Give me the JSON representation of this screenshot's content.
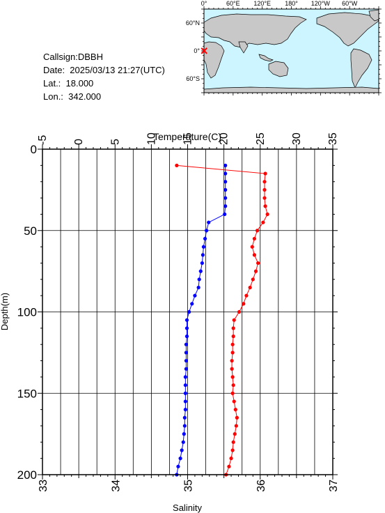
{
  "info": {
    "callsign": "Callsign:DBBH",
    "date": "Date:  2025/03/13 21:27(UTC)",
    "lat": "Lat.:  18.000",
    "lon": "Lon.:  342.000"
  },
  "map": {
    "lon_labels": [
      "0°",
      "60°E",
      "120°E",
      "180°",
      "120°W",
      "60°W"
    ],
    "lat_labels": [
      "60°N",
      "0°",
      "60°S"
    ],
    "ocean_color": "#ccf5ff",
    "land_color": "#c8c8c8",
    "marker_color": "#ff0000",
    "marker_icon": "x-mark-icon"
  },
  "chart_data": {
    "type": "line",
    "top_axis": {
      "label": "Temperature(C)",
      "range": [
        -5,
        35
      ],
      "ticks": [
        -5,
        0,
        5,
        10,
        15,
        20,
        25,
        30,
        35
      ]
    },
    "bottom_axis": {
      "label": "Salinity",
      "range": [
        33,
        37
      ],
      "ticks": [
        33,
        34,
        35,
        36,
        37
      ]
    },
    "left_axis": {
      "label": "Depth(m)",
      "range": [
        0,
        200
      ],
      "ticks": [
        0,
        50,
        100,
        150,
        200
      ],
      "inverted": true
    },
    "grid": true,
    "series": [
      {
        "axis": "temperature",
        "color": "#0000ff",
        "points": [
          [
            20.2,
            10
          ],
          [
            20.2,
            15
          ],
          [
            20.2,
            20
          ],
          [
            20.2,
            25
          ],
          [
            20.2,
            30
          ],
          [
            20.2,
            35
          ],
          [
            20.1,
            40
          ],
          [
            17.9,
            45
          ],
          [
            17.6,
            50
          ],
          [
            17.4,
            55
          ],
          [
            17.2,
            60
          ],
          [
            17.1,
            65
          ],
          [
            17.0,
            70
          ],
          [
            16.8,
            75
          ],
          [
            16.6,
            80
          ],
          [
            16.5,
            85
          ],
          [
            16.0,
            90
          ],
          [
            15.6,
            95
          ],
          [
            15.2,
            100
          ],
          [
            14.9,
            105
          ],
          [
            14.9,
            110
          ],
          [
            14.9,
            115
          ],
          [
            14.8,
            120
          ],
          [
            14.8,
            125
          ],
          [
            14.8,
            130
          ],
          [
            14.8,
            135
          ],
          [
            14.7,
            140
          ],
          [
            14.7,
            145
          ],
          [
            14.7,
            150
          ],
          [
            14.7,
            155
          ],
          [
            14.7,
            160
          ],
          [
            14.6,
            165
          ],
          [
            14.6,
            170
          ],
          [
            14.5,
            175
          ],
          [
            14.4,
            180
          ],
          [
            14.2,
            185
          ],
          [
            14.0,
            190
          ],
          [
            13.7,
            195
          ],
          [
            13.5,
            200
          ]
        ]
      },
      {
        "axis": "salinity",
        "color": "#ff0000",
        "points": [
          [
            34.85,
            10
          ],
          [
            36.07,
            15
          ],
          [
            36.06,
            20
          ],
          [
            36.06,
            25
          ],
          [
            36.06,
            30
          ],
          [
            36.07,
            35
          ],
          [
            36.1,
            40
          ],
          [
            36.04,
            45
          ],
          [
            35.96,
            50
          ],
          [
            35.92,
            55
          ],
          [
            35.89,
            60
          ],
          [
            35.92,
            65
          ],
          [
            35.97,
            70
          ],
          [
            35.94,
            75
          ],
          [
            35.9,
            80
          ],
          [
            35.86,
            85
          ],
          [
            35.81,
            90
          ],
          [
            35.77,
            95
          ],
          [
            35.71,
            100
          ],
          [
            35.64,
            105
          ],
          [
            35.63,
            110
          ],
          [
            35.63,
            115
          ],
          [
            35.62,
            120
          ],
          [
            35.62,
            125
          ],
          [
            35.61,
            130
          ],
          [
            35.61,
            135
          ],
          [
            35.62,
            140
          ],
          [
            35.63,
            145
          ],
          [
            35.62,
            150
          ],
          [
            35.64,
            155
          ],
          [
            35.66,
            160
          ],
          [
            35.68,
            165
          ],
          [
            35.67,
            170
          ],
          [
            35.65,
            175
          ],
          [
            35.63,
            180
          ],
          [
            35.62,
            185
          ],
          [
            35.6,
            190
          ],
          [
            35.57,
            195
          ],
          [
            35.53,
            200
          ]
        ]
      }
    ]
  }
}
